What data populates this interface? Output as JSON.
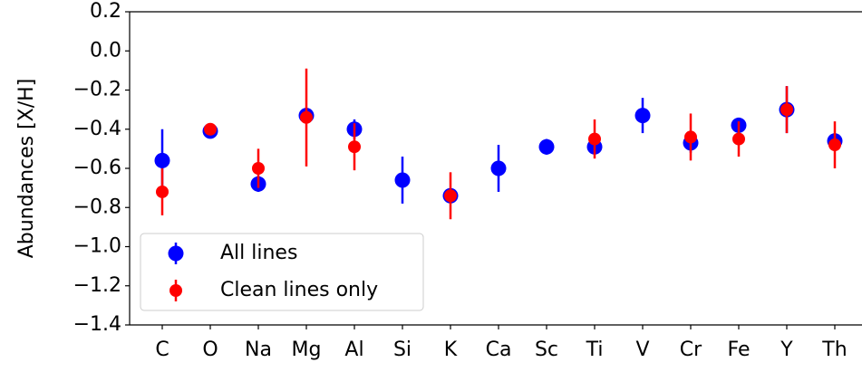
{
  "chart_data": {
    "type": "errorbar",
    "ylabel": "Abundances [X/H]",
    "categories": [
      "C",
      "O",
      "Na",
      "Mg",
      "Al",
      "Si",
      "K",
      "Ca",
      "Sc",
      "Ti",
      "V",
      "Cr",
      "Fe",
      "Y",
      "Th"
    ],
    "series": [
      {
        "name": "All lines",
        "color": "#0000ff",
        "values": [
          -0.56,
          -0.41,
          -0.68,
          -0.33,
          -0.4,
          -0.66,
          -0.74,
          -0.6,
          -0.49,
          -0.49,
          -0.33,
          -0.47,
          -0.38,
          -0.3,
          -0.46
        ],
        "errors": [
          0.16,
          0.01,
          0.04,
          0.03,
          0.05,
          0.12,
          0.03,
          0.12,
          0.04,
          0.03,
          0.09,
          0.05,
          0.02,
          0.12,
          0.04
        ]
      },
      {
        "name": "Clean lines only",
        "color": "#ff0000",
        "values": [
          -0.72,
          -0.4,
          -0.6,
          -0.34,
          -0.49,
          null,
          -0.74,
          null,
          null,
          -0.45,
          null,
          -0.44,
          -0.45,
          -0.3,
          -0.48
        ],
        "errors": [
          0.12,
          0.01,
          0.1,
          0.25,
          0.12,
          null,
          0.12,
          null,
          null,
          0.1,
          null,
          0.12,
          0.09,
          0.12,
          0.12
        ]
      }
    ],
    "ylim": [
      -1.4,
      0.2
    ],
    "yticks": [
      0.2,
      {
        "value": 0,
        "label": "0.0"
      },
      {
        "value": -0.2,
        "label": "−0.2"
      },
      {
        "value": -0.4,
        "label": "−0.4"
      },
      {
        "value": -0.6,
        "label": "−0.6"
      },
      {
        "value": -0.8,
        "label": "−0.8"
      },
      {
        "value": -1.0,
        "label": "−1.0"
      },
      {
        "value": -1.2,
        "label": "−1.2"
      },
      {
        "value": -1.4,
        "label": "−1.4"
      }
    ],
    "legend": "lower left"
  }
}
